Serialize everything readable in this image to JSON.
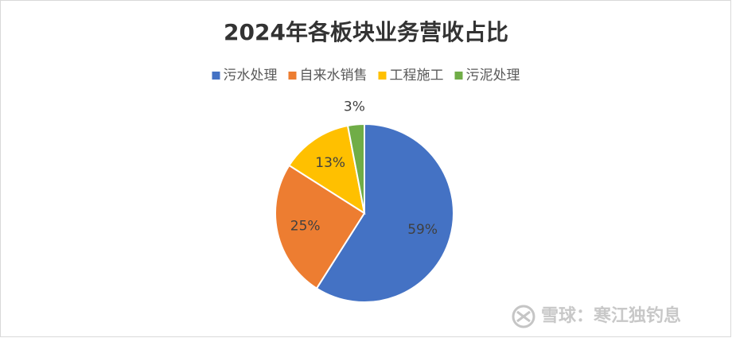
{
  "chart_data": {
    "type": "pie",
    "title": "2024年各板块业务营收占比",
    "categories": [
      "污水处理",
      "自来水销售",
      "工程施工",
      "污泥处理"
    ],
    "values": [
      59,
      25,
      13,
      3
    ],
    "value_labels": [
      "59%",
      "25%",
      "13%",
      "3%"
    ],
    "colors": [
      "#4472c4",
      "#ed7d31",
      "#ffc000",
      "#70ad47"
    ],
    "legend": "top"
  },
  "watermark": "雪球：寒江独钓息"
}
